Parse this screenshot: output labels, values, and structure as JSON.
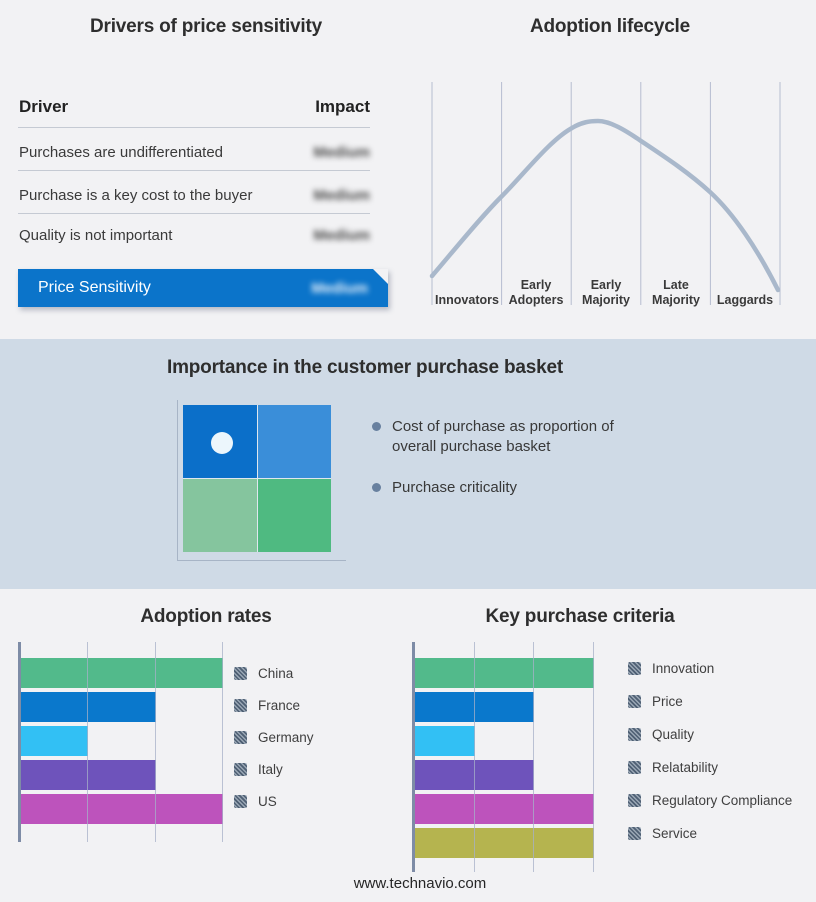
{
  "footer": {
    "url": "www.technavio.com"
  },
  "drivers_table": {
    "title": "Drivers of price sensitivity",
    "columns": {
      "driver": "Driver",
      "impact": "Impact"
    },
    "rows": [
      {
        "driver": "Purchases are undifferentiated",
        "impact": "Medium"
      },
      {
        "driver": "Purchase is a key cost to the buyer",
        "impact": "Medium"
      },
      {
        "driver": "Quality is not important",
        "impact": "Medium"
      }
    ],
    "summary_row": {
      "label": "Price Sensitivity",
      "impact": "Medium"
    },
    "banner_color": "#0b74ca"
  },
  "basket_panel": {
    "title": "Importance in the customer purchase basket",
    "bullets": [
      "Cost of purchase as proportion of overall purchase basket",
      "Purchase criticality"
    ]
  },
  "chart_data": [
    {
      "id": "adoption-lifecycle",
      "type": "line",
      "title": "Adoption lifecycle",
      "x_stages": [
        "Innovators",
        "Early Adopters",
        "Early Majority",
        "Late Majority",
        "Laggards"
      ],
      "shape": "bell-curve",
      "peak_stage": "Early Majority",
      "line_color": "#a9b8cb",
      "grid": "vertical-only"
    },
    {
      "id": "purchase-basket-matrix",
      "type": "heatmap",
      "rows": 2,
      "cols": 2,
      "cell_colors": [
        [
          "#0b6fc9",
          "#3a8ed9"
        ],
        [
          "#85c59e",
          "#4fba81"
        ]
      ],
      "marker": {
        "row": 0,
        "col": 0,
        "shape": "circle",
        "color": "#ecf6fc"
      }
    },
    {
      "id": "adoption-rates",
      "type": "bar",
      "orientation": "horizontal",
      "title": "Adoption rates",
      "categories": [
        "China",
        "France",
        "Germany",
        "Italy",
        "US"
      ],
      "values": [
        3,
        2,
        1,
        2,
        3
      ],
      "value_scale": "gridline-units",
      "colors": [
        "#52ba8b",
        "#0a78cc",
        "#32c0f4",
        "#6e53bb",
        "#bd53bc"
      ],
      "xlim": [
        0,
        3
      ],
      "gridlines": true,
      "legend_position": "right"
    },
    {
      "id": "key-purchase-criteria",
      "type": "bar",
      "orientation": "horizontal",
      "title": "Key purchase criteria",
      "categories": [
        "Innovation",
        "Price",
        "Quality",
        "Relatability",
        "Regulatory Compliance",
        "Service"
      ],
      "values": [
        3,
        2,
        1,
        2,
        3,
        3
      ],
      "value_scale": "gridline-units",
      "colors": [
        "#52ba8b",
        "#0a78cc",
        "#32c0f4",
        "#6e53bb",
        "#bd53bc",
        "#b5b44f"
      ],
      "xlim": [
        0,
        3
      ],
      "gridlines": true,
      "legend_position": "right"
    }
  ]
}
